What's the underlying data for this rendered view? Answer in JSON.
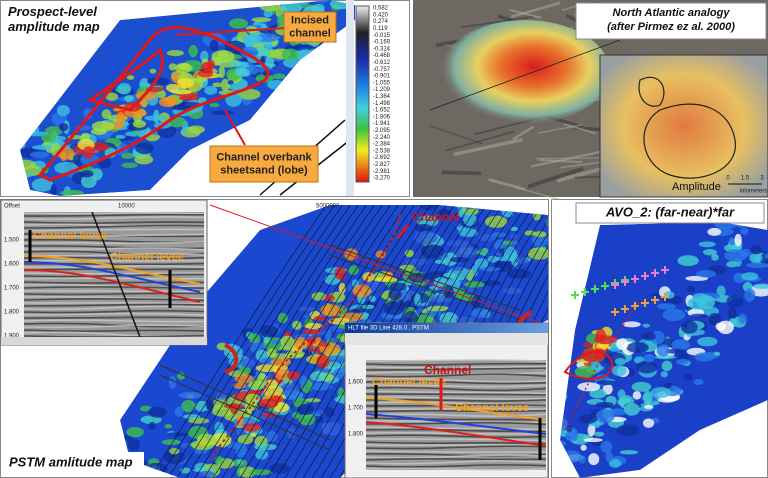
{
  "panel_prospect": {
    "title": "Prospect-level amplitude map",
    "callout_incised": "Incised channel",
    "callout_overbank": "Channel overbank sheetsand (lobe)",
    "colorbar_labels": [
      "0.582",
      "0.420",
      "0.274",
      "0.119",
      "-0.015",
      "-0.169",
      "-0.324",
      "-0.468",
      "-0.612",
      "-0.757",
      "-0.901",
      "-1.055",
      "-1.209",
      "-1.364",
      "-1.498",
      "-1.652",
      "-1.806",
      "-1.941",
      "-2.095",
      "-2.240",
      "-2.384",
      "-2.538",
      "-2.692",
      "-2.827",
      "-2.981",
      "-3.270"
    ]
  },
  "panel_analogy": {
    "title": "North Atlantic analogy (after Pirmez ez al. 2000)",
    "scale_label": "Amplitude",
    "scale_unit": "kilometers",
    "scale_ticks": [
      "0",
      "1.5",
      "3"
    ]
  },
  "panel_pstm": {
    "title": "PSTM amlitude map",
    "channel_label": "Channel",
    "map_x_tick": "5000000",
    "inset_left": {
      "offset_label": "Offset",
      "x_tick": "10000",
      "y_ticks": [
        "1.500",
        "1.600",
        "1.700",
        "1.800",
        "1.900"
      ],
      "levee_labels": [
        "Channel levee",
        "Channel levee"
      ]
    },
    "inset_right": {
      "window_title": "HLT file 3D Line 428.0 , PSTM",
      "channel_label": "Channel",
      "levee_labels": [
        "Channel levee",
        "Channel levee"
      ],
      "y_ticks": [
        "1.600",
        "1.700",
        "1.800"
      ]
    }
  },
  "panel_avo": {
    "title": "AVO_2: (far-near)*far"
  }
}
